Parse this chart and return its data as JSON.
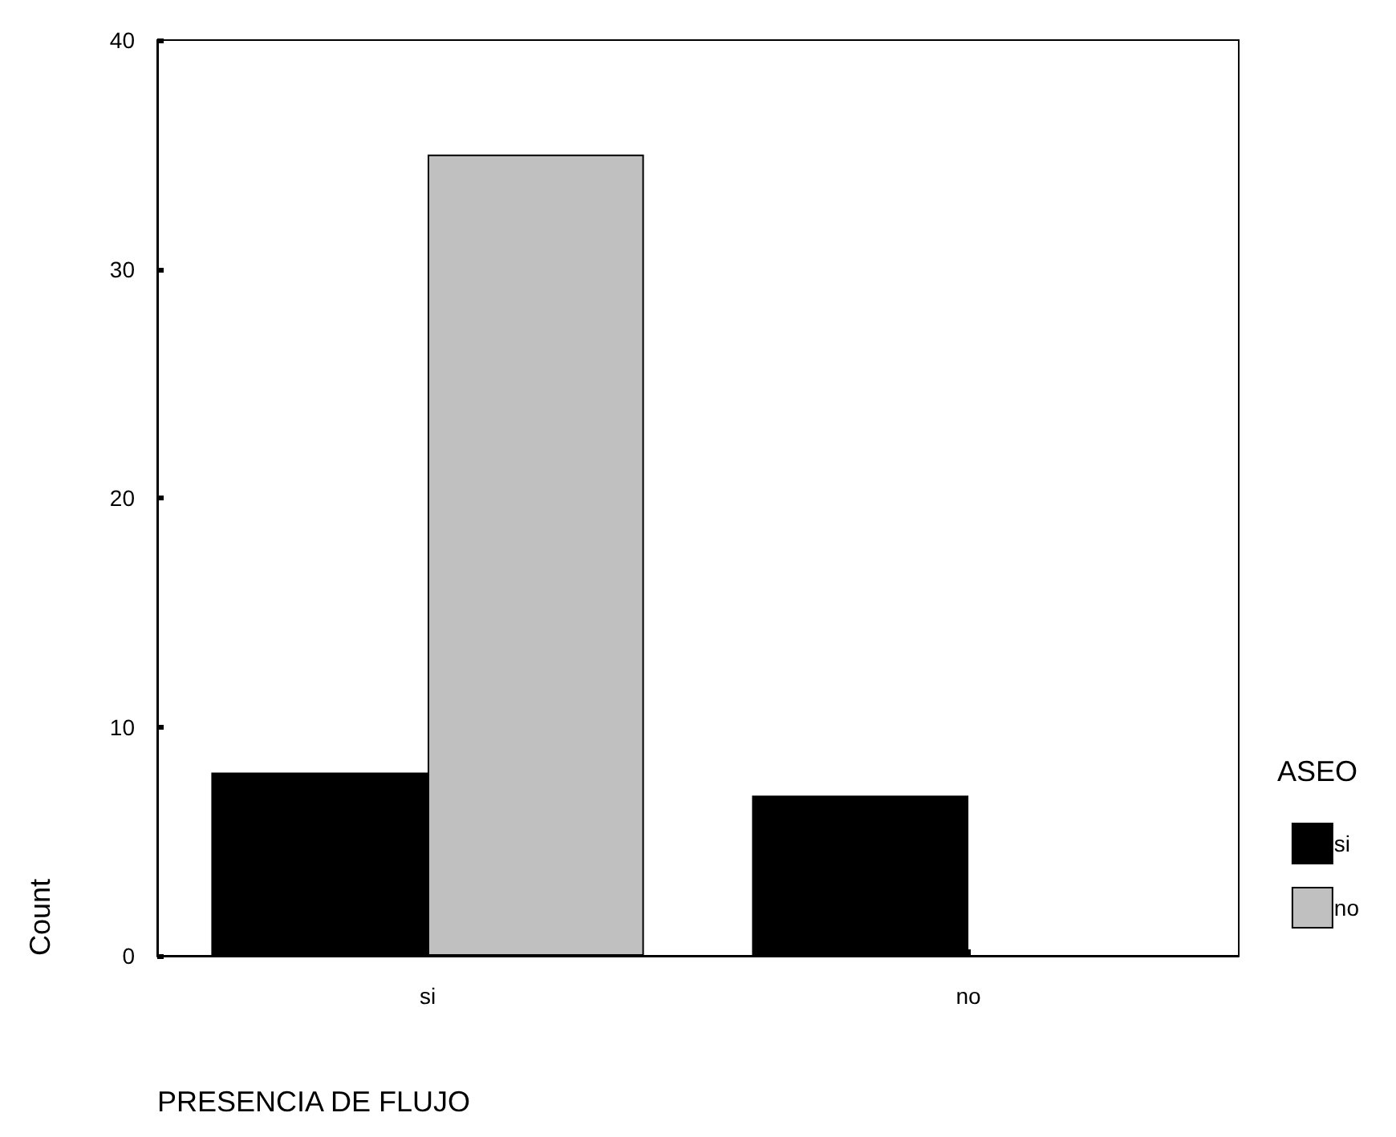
{
  "chart_data": {
    "type": "bar",
    "xlabel": "PRESENCIA DE FLUJO",
    "ylabel": "Count",
    "legend_title": "ASEO",
    "categories": [
      "si",
      "no"
    ],
    "series": [
      {
        "name": "si",
        "color": "#000000",
        "values": [
          8,
          7
        ]
      },
      {
        "name": "no",
        "color": "#c0c0c0",
        "values": [
          35,
          0
        ]
      }
    ],
    "ylim": [
      0,
      40
    ],
    "yticks": [
      0,
      10,
      20,
      30,
      40
    ],
    "grid": false,
    "legend": "right"
  }
}
